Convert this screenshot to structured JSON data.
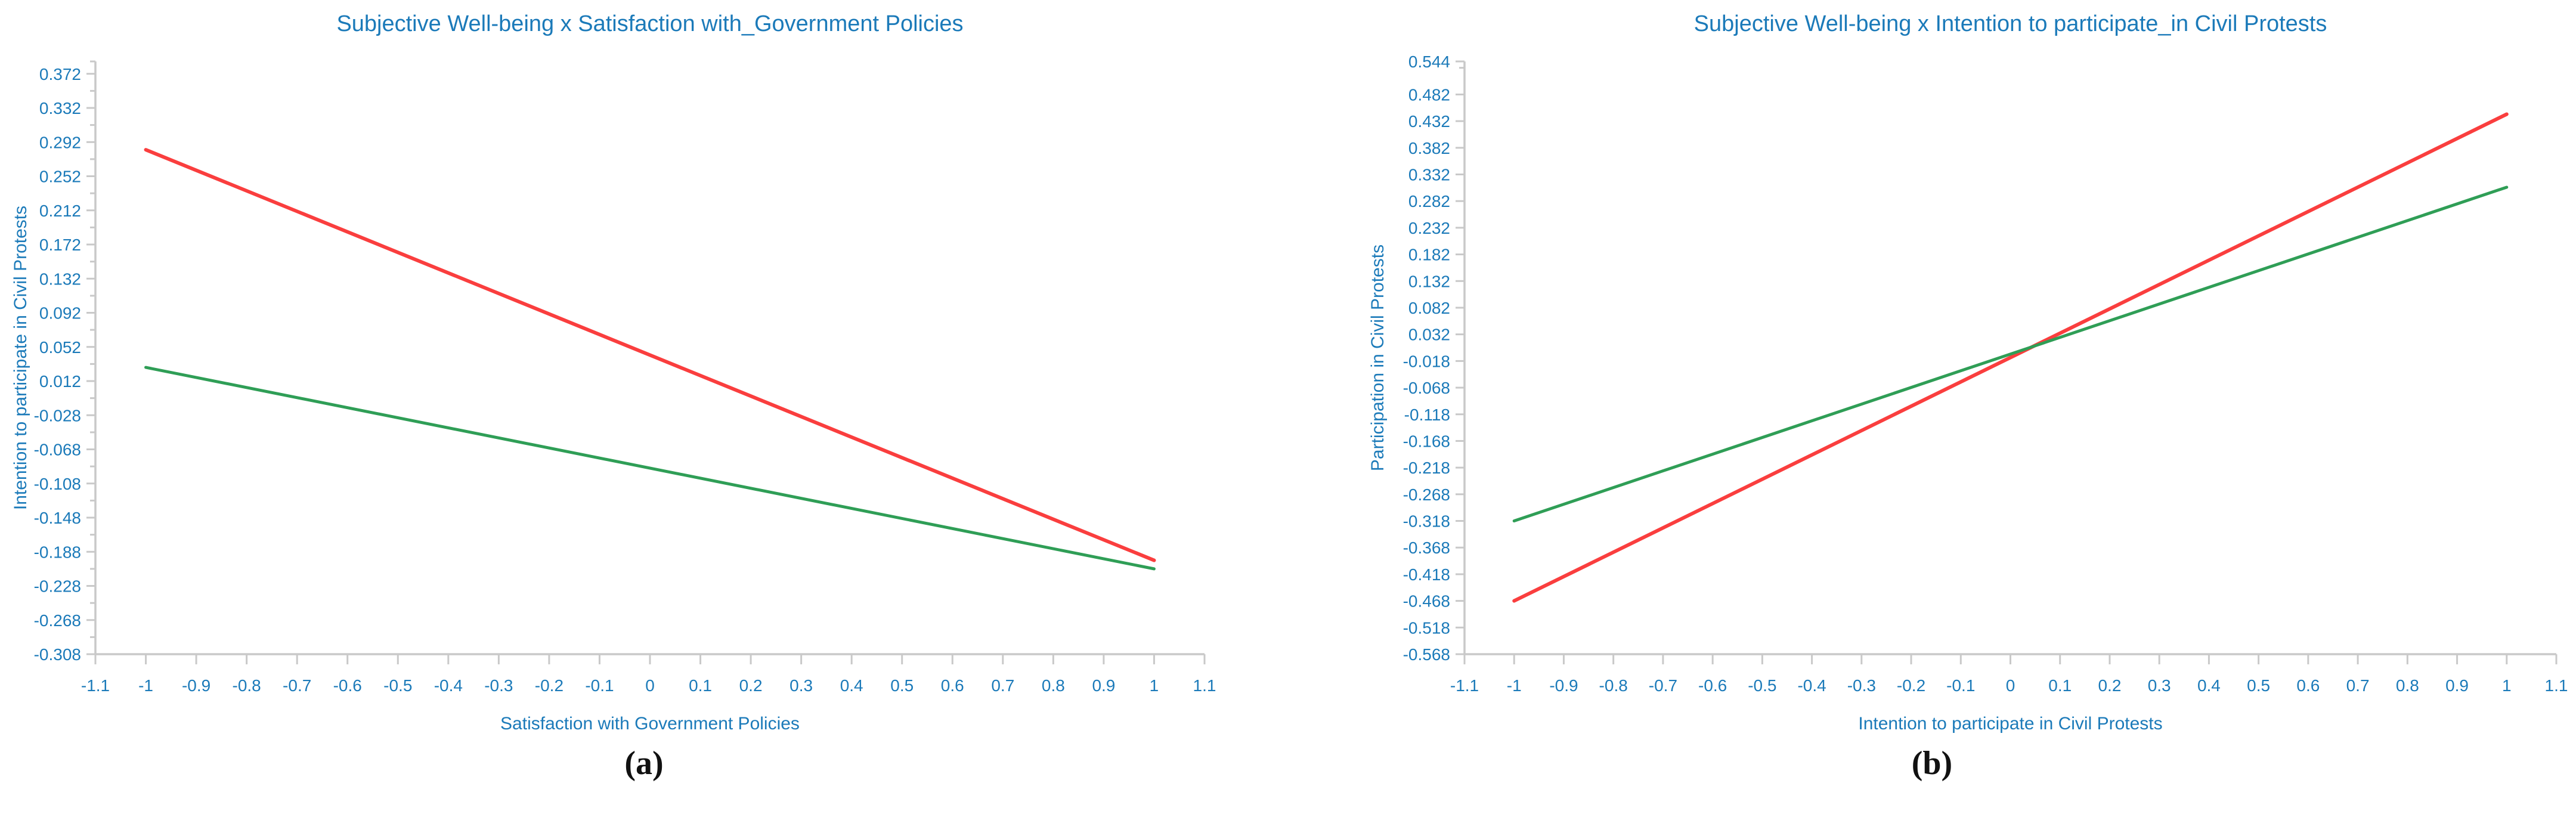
{
  "page": {
    "background": "#ffffff"
  },
  "colors": {
    "text_blue": "#1b7ab9",
    "axis_gray": "#c9c9c9",
    "caption_black": "#111111"
  },
  "captions": {
    "a": "(a)",
    "b": "(b)"
  },
  "chart_data": [
    {
      "type": "line",
      "title": "Subjective Well-being x Satisfaction with_Government Policies",
      "xlabel": "Satisfaction with Government Policies",
      "ylabel": "Intention to participate in Civil Protests",
      "grid": false,
      "legend": "none",
      "xlim": [
        -1.1,
        1.1
      ],
      "ylim": [
        -0.308,
        0.3865
      ],
      "x_ticks": {
        "values": [
          -1.1,
          -1,
          -0.9,
          -0.8,
          -0.7,
          -0.6,
          -0.5,
          -0.4,
          -0.3,
          -0.2,
          -0.1,
          0,
          0.1,
          0.2,
          0.3,
          0.4,
          0.5,
          0.6,
          0.7,
          0.8,
          0.9,
          1,
          1.1
        ],
        "labels": [
          "-1.1",
          "-1",
          "-0.9",
          "-0.8",
          "-0.7",
          "-0.6",
          "-0.5",
          "-0.4",
          "-0.3",
          "-0.2",
          "-0.1",
          "0",
          "0.1",
          "0.2",
          "0.3",
          "0.4",
          "0.5",
          "0.6",
          "0.7",
          "0.8",
          "0.9",
          "1",
          "1.1"
        ]
      },
      "y_ticks": {
        "values": [
          0.372,
          0.332,
          0.292,
          0.252,
          0.212,
          0.172,
          0.132,
          0.092,
          0.052,
          0.012,
          -0.028,
          -0.068,
          -0.108,
          -0.148,
          -0.188,
          -0.228,
          -0.268,
          -0.308
        ],
        "labels": [
          "0.372",
          "0.332",
          "0.292",
          "0.252",
          "0.212",
          "0.172",
          "0.132",
          "0.092",
          "0.052",
          "0.012",
          "-0.028",
          "-0.068",
          "-0.108",
          "-0.148",
          "-0.188",
          "-0.228",
          "-0.268",
          "-0.308"
        ],
        "minor": [
          0.3865,
          0.352,
          0.312,
          0.272,
          0.232,
          0.192,
          0.152,
          0.112,
          0.072,
          0.032,
          -0.008,
          -0.048,
          -0.088,
          -0.128,
          -0.168,
          -0.208,
          -0.248,
          -0.288
        ]
      },
      "series": [
        {
          "name": "red-line",
          "color": "#fa3e3e",
          "x": [
            -1,
            1
          ],
          "y": [
            0.283,
            -0.198
          ]
        },
        {
          "name": "green-line",
          "color": "#2f9e56",
          "x": [
            -1,
            1
          ],
          "y": [
            0.028,
            -0.208
          ]
        }
      ]
    },
    {
      "type": "line",
      "title": "Subjective Well-being x Intention to participate_in Civil Protests",
      "xlabel": "Intention to participate in Civil Protests",
      "ylabel": "Participation in Civil Protests",
      "grid": false,
      "legend": "none",
      "xlim": [
        -1.1,
        1.1
      ],
      "ylim": [
        -0.568,
        0.544
      ],
      "x_ticks": {
        "values": [
          -1.1,
          -1,
          -0.9,
          -0.8,
          -0.7,
          -0.6,
          -0.5,
          -0.4,
          -0.3,
          -0.2,
          -0.1,
          0,
          0.1,
          0.2,
          0.3,
          0.4,
          0.5,
          0.6,
          0.7,
          0.8,
          0.9,
          1,
          1.1
        ],
        "labels": [
          "-1.1",
          "-1",
          "-0.9",
          "-0.8",
          "-0.7",
          "-0.6",
          "-0.5",
          "-0.4",
          "-0.3",
          "-0.2",
          "-0.1",
          "0",
          "0.1",
          "0.2",
          "0.3",
          "0.4",
          "0.5",
          "0.6",
          "0.7",
          "0.8",
          "0.9",
          "1",
          "1.1"
        ]
      },
      "y_ticks": {
        "values": [
          0.544,
          0.482,
          0.432,
          0.382,
          0.332,
          0.282,
          0.232,
          0.182,
          0.132,
          0.082,
          0.032,
          -0.018,
          -0.068,
          -0.118,
          -0.168,
          -0.218,
          -0.268,
          -0.318,
          -0.368,
          -0.418,
          -0.468,
          -0.518,
          -0.568
        ],
        "labels": [
          "0.544",
          "0.482",
          "0.432",
          "0.382",
          "0.332",
          "0.282",
          "0.232",
          "0.182",
          "0.132",
          "0.082",
          "0.032",
          "-0.018",
          "-0.068",
          "-0.118",
          "-0.168",
          "-0.218",
          "-0.268",
          "-0.318",
          "-0.368",
          "-0.418",
          "-0.468",
          "-0.518",
          "-0.568"
        ],
        "minor": [
          0.532
        ]
      },
      "series": [
        {
          "name": "red-line",
          "color": "#fa3e3e",
          "x": [
            -1,
            1
          ],
          "y": [
            -0.468,
            0.445
          ]
        },
        {
          "name": "green-line",
          "color": "#2f9e56",
          "x": [
            -1,
            1
          ],
          "y": [
            -0.318,
            0.308
          ]
        }
      ]
    }
  ]
}
